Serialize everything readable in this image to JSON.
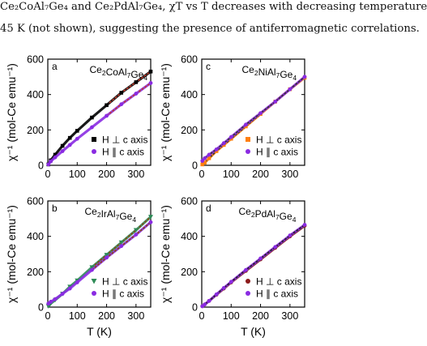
{
  "caption": {
    "line1": "Ce₂CoAl₇Ge₄ and Ce₂PdAl₇Ge₄, χT vs T decreases with decreasing temperature",
    "line2": "45 K (not shown), suggesting the presence of antiferromagnetic correlations."
  },
  "chart_data": [
    {
      "type": "scatter",
      "panel": "a",
      "compound": "Ce2CoAl7Ge4",
      "xlabel": "",
      "ylabel": "χ⁻¹ (mol-Ce emu⁻¹)",
      "xlim": [
        0,
        350
      ],
      "ylim": [
        0,
        600
      ],
      "xticks": [
        "0",
        "100",
        "200",
        "300"
      ],
      "yticks": [
        "0",
        "200",
        "400",
        "600"
      ],
      "grid": false,
      "legend": "bottom-right",
      "series": [
        {
          "name": "H ⊥ c axis",
          "color": "#000000",
          "marker": "square",
          "fit_color": "#c0392b",
          "fit_range": [
            200,
            350
          ],
          "x": [
            2,
            10,
            25,
            50,
            75,
            100,
            150,
            200,
            250,
            300,
            350
          ],
          "y": [
            5,
            28,
            60,
            110,
            155,
            195,
            270,
            340,
            410,
            470,
            530
          ]
        },
        {
          "name": "H ∥ c axis",
          "color": "#8a2be2",
          "marker": "circle",
          "fit_color": "#c0392b",
          "fit_range": [
            200,
            350
          ],
          "x": [
            2,
            10,
            25,
            50,
            75,
            100,
            150,
            200,
            250,
            300,
            350
          ],
          "y": [
            5,
            22,
            45,
            80,
            115,
            150,
            215,
            280,
            345,
            405,
            465
          ]
        }
      ]
    },
    {
      "type": "scatter",
      "panel": "c",
      "compound": "Ce2NiAl7Ge4",
      "xlabel": "",
      "ylabel": "χ⁻¹ (mol-Ce emu⁻¹)",
      "xlim": [
        0,
        350
      ],
      "ylim": [
        0,
        600
      ],
      "xticks": [
        "0",
        "100",
        "200",
        "300"
      ],
      "yticks": [
        "0",
        "200",
        "400",
        "600"
      ],
      "grid": false,
      "legend": "bottom-right",
      "series": [
        {
          "name": "H ⊥ c axis",
          "color": "#ff7f0e",
          "marker": "square",
          "fit_color": "#333333",
          "fit_range": [
            0,
            350
          ],
          "x": [
            2,
            10,
            25,
            50,
            75,
            100,
            150,
            200,
            250,
            300,
            350
          ],
          "y": [
            5,
            15,
            40,
            80,
            115,
            150,
            220,
            290,
            360,
            430,
            495
          ]
        },
        {
          "name": "H ∥ c axis",
          "color": "#8a2be2",
          "marker": "circle",
          "fit_color": "#333333",
          "fit_range": [
            0,
            350
          ],
          "x": [
            2,
            10,
            25,
            50,
            75,
            100,
            150,
            200,
            250,
            300,
            350
          ],
          "y": [
            25,
            40,
            60,
            90,
            125,
            160,
            230,
            295,
            360,
            430,
            500
          ]
        }
      ]
    },
    {
      "type": "scatter",
      "panel": "b",
      "compound": "Ce2IrAl7Ge4",
      "xlabel": "T (K)",
      "ylabel": "χ⁻¹ (mol-Ce emu⁻¹)",
      "xlim": [
        0,
        350
      ],
      "ylim": [
        0,
        600
      ],
      "xticks": [
        "0",
        "100",
        "200",
        "300"
      ],
      "yticks": [
        "0",
        "200",
        "400",
        "600"
      ],
      "grid": false,
      "legend": "bottom-right",
      "series": [
        {
          "name": "H ⊥ c axis",
          "color": "#2e8b57",
          "marker": "triangle",
          "fit_color": "#8b4513",
          "fit_range": [
            150,
            350
          ],
          "x": [
            2,
            10,
            25,
            50,
            75,
            100,
            150,
            200,
            250,
            300,
            350
          ],
          "y": [
            5,
            20,
            40,
            75,
            115,
            150,
            225,
            295,
            365,
            435,
            510
          ]
        },
        {
          "name": "H ∥ c axis",
          "color": "#8a2be2",
          "marker": "circle",
          "fit_color": "#8b4513",
          "fit_range": [
            150,
            350
          ],
          "x": [
            2,
            10,
            25,
            50,
            75,
            100,
            150,
            200,
            250,
            300,
            350
          ],
          "y": [
            20,
            30,
            45,
            75,
            105,
            140,
            210,
            280,
            345,
            410,
            480
          ]
        }
      ]
    },
    {
      "type": "scatter",
      "panel": "d",
      "compound": "Ce2PdAl7Ge4",
      "xlabel": "T (K)",
      "ylabel": "χ⁻¹ (mol-Ce emu⁻¹)",
      "xlim": [
        0,
        350
      ],
      "ylim": [
        0,
        600
      ],
      "xticks": [
        "0",
        "100",
        "200",
        "300"
      ],
      "yticks": [
        "0",
        "200",
        "400",
        "600"
      ],
      "grid": false,
      "legend": "bottom-right",
      "series": [
        {
          "name": "H ⊥ c axis",
          "color": "#8b1a1a",
          "marker": "circle",
          "fit_color": "#222222",
          "fit_range": [
            0,
            350
          ],
          "x": [
            2,
            10,
            25,
            50,
            75,
            100,
            150,
            200,
            250,
            300,
            350
          ],
          "y": [
            5,
            15,
            35,
            70,
            105,
            140,
            205,
            270,
            335,
            400,
            460
          ]
        },
        {
          "name": "H ∥ c axis",
          "color": "#8a2be2",
          "marker": "circle",
          "fit_color": "#222222",
          "fit_range": [
            0,
            350
          ],
          "x": [
            2,
            10,
            25,
            50,
            75,
            100,
            150,
            200,
            250,
            300,
            350
          ],
          "y": [
            5,
            15,
            35,
            72,
            108,
            143,
            210,
            275,
            340,
            405,
            465
          ]
        }
      ]
    }
  ]
}
